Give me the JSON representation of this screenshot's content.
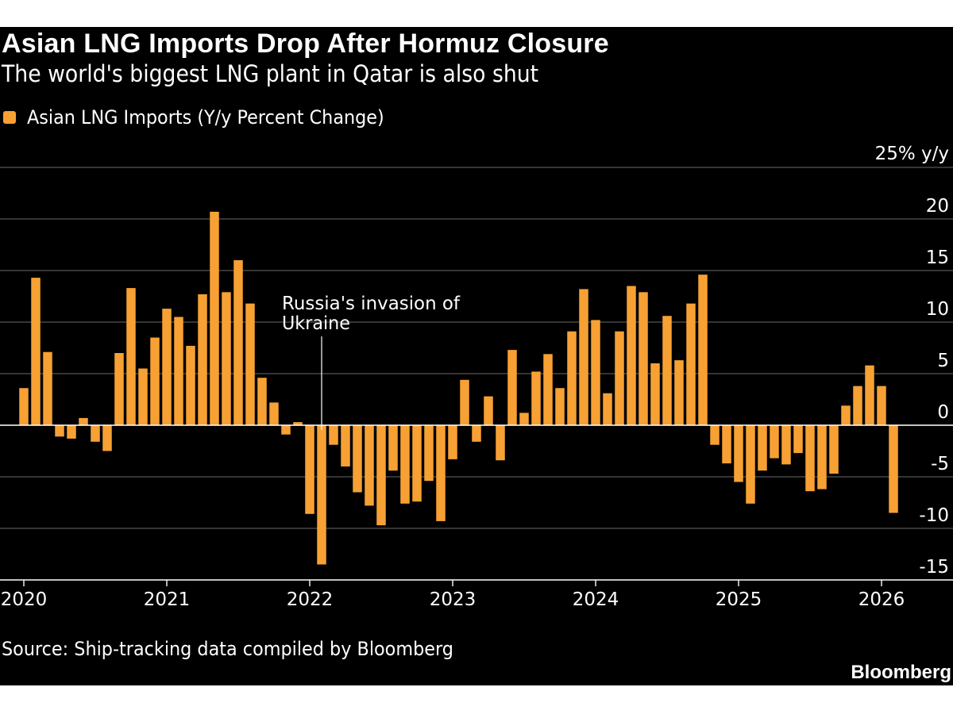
{
  "header": {
    "title": "Asian LNG Imports Drop After Hormuz Closure",
    "subtitle": "The world's biggest LNG plant in Qatar is also shut"
  },
  "colors": {
    "background": "#000000",
    "bar": "#f7a134",
    "grid": "#555555",
    "text": "#ffffff"
  },
  "chart_data": {
    "type": "bar",
    "title": "Asian LNG Imports Drop After Hormuz Closure",
    "subtitle": "The world's biggest LNG plant in Qatar is also shut",
    "legend": [
      "Asian LNG Imports (Y/y Percent Change)"
    ],
    "legend_position": "top-left",
    "ylabel": "25% y/y",
    "ylim": [
      -15,
      25
    ],
    "yticks": [
      -15,
      -10,
      -5,
      0,
      5,
      10,
      15,
      20,
      25
    ],
    "ytick_labels": [
      "-15",
      "-10",
      "-5",
      "0",
      "5",
      "10",
      "15",
      "20",
      "25% y/y"
    ],
    "grid": true,
    "x_start": "2020-01",
    "xtick_labels": [
      "2020",
      "2021",
      "2022",
      "2023",
      "2024",
      "2025",
      "2026"
    ],
    "series": [
      {
        "name": "Asian LNG Imports (Y/y Percent Change)",
        "values": [
          3.6,
          14.3,
          7.1,
          -1.1,
          -1.3,
          0.7,
          -1.6,
          -2.5,
          7.0,
          13.3,
          5.5,
          8.5,
          11.3,
          10.5,
          7.7,
          12.7,
          20.7,
          12.9,
          16.0,
          11.8,
          4.6,
          2.2,
          -0.9,
          0.3,
          -8.6,
          -13.5,
          -1.9,
          -4.0,
          -6.5,
          -7.8,
          -9.7,
          -4.4,
          -7.6,
          -7.4,
          -5.4,
          -9.3,
          -3.3,
          4.4,
          -1.6,
          2.8,
          -3.4,
          7.3,
          1.2,
          5.2,
          6.9,
          3.6,
          9.1,
          13.2,
          10.2,
          3.1,
          9.1,
          13.5,
          12.9,
          6.0,
          10.6,
          6.3,
          11.8,
          14.6,
          -1.9,
          -3.7,
          -5.5,
          -7.6,
          -4.4,
          -3.2,
          -3.8,
          -2.7,
          -6.4,
          -6.2,
          -4.7,
          1.9,
          3.8,
          5.8,
          3.8,
          -8.5
        ]
      }
    ],
    "annotations": [
      {
        "text_line1": "Russia's invasion of",
        "text_line2": "Ukraine",
        "date": "2022-02"
      }
    ],
    "source": "Source: Ship-tracking data compiled by Bloomberg"
  },
  "footer": {
    "source": "Source: Ship-tracking data compiled by Bloomberg",
    "brand": "Bloomberg"
  }
}
